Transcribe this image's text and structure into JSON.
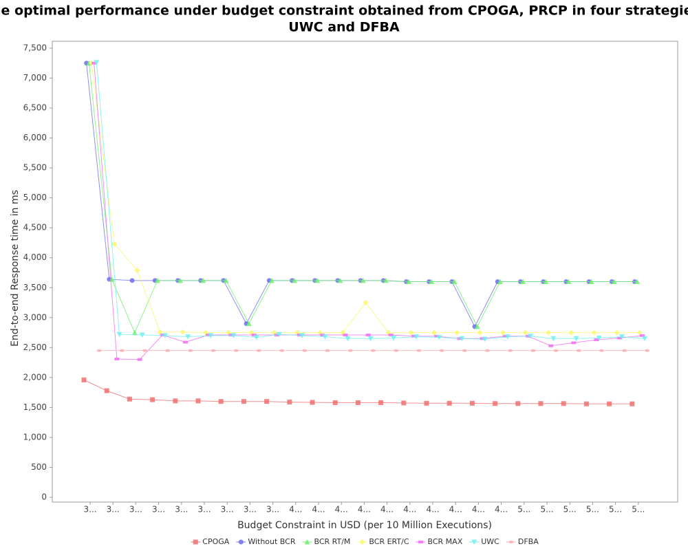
{
  "chart_data": {
    "type": "line",
    "title": [
      "The optimal performance under budget constraint obtained from CPOGA, PRCP in four strategies,",
      "UWC and DFBA"
    ],
    "x_label": "Budget Constraint in USD (per 10 Million Executions)",
    "y_label": "End-to-end Response time in ms",
    "categories": [
      "3...",
      "3...",
      "3...",
      "3...",
      "3...",
      "3...",
      "3...",
      "3...",
      "3...",
      "4...",
      "4...",
      "4...",
      "4...",
      "4...",
      "4...",
      "4...",
      "4...",
      "4...",
      "4...",
      "5...",
      "5...",
      "5...",
      "5...",
      "5...",
      "5..."
    ],
    "ylim": [
      0,
      7500
    ],
    "yticks": [
      0,
      500,
      {
        "value": 1000,
        "label": "1,000"
      },
      {
        "value": 1500,
        "label": "1,500"
      },
      {
        "value": 2000,
        "label": "2,000"
      },
      {
        "value": 2500,
        "label": "2,500"
      },
      {
        "value": 3000,
        "label": "3,000"
      },
      {
        "value": 3500,
        "label": "3,500"
      },
      {
        "value": 4000,
        "label": "4,000"
      },
      {
        "value": 4500,
        "label": "4,500"
      },
      {
        "value": 5000,
        "label": "5,000"
      },
      {
        "value": 5500,
        "label": "5,500"
      },
      {
        "value": 6000,
        "label": "6,000"
      },
      {
        "value": 6500,
        "label": "6,500"
      },
      {
        "value": 7000,
        "label": "7,000"
      },
      {
        "value": 7500,
        "label": "7,500"
      }
    ],
    "grid": false,
    "legend": "bottom",
    "series": [
      {
        "name": "CPOGA",
        "color": "#f07070",
        "marker": "square",
        "values": [
          1960,
          1780,
          1640,
          1630,
          1610,
          1610,
          1600,
          1600,
          1600,
          1590,
          1585,
          1580,
          1580,
          1580,
          1575,
          1570,
          1570,
          1570,
          1565,
          1565,
          1565,
          1565,
          1560,
          1560,
          1560
        ]
      },
      {
        "name": "Without BCR",
        "color": "#7070f0",
        "marker": "circle",
        "values": [
          7250,
          3640,
          3620,
          3620,
          3620,
          3620,
          3620,
          2900,
          3620,
          3620,
          3620,
          3620,
          3620,
          3620,
          3600,
          3600,
          3600,
          2850,
          3600,
          3600,
          3600,
          3600,
          3600,
          3600,
          3600
        ]
      },
      {
        "name": "BCR RT/M",
        "color": "#70f070",
        "marker": "triangle",
        "values": [
          7250,
          3640,
          2750,
          3620,
          3620,
          3620,
          3620,
          2900,
          3620,
          3620,
          3620,
          3620,
          3620,
          3620,
          3600,
          3600,
          3600,
          2850,
          3600,
          3600,
          3600,
          3600,
          3600,
          3600,
          3600
        ]
      },
      {
        "name": "BCR ERT/C",
        "color": "#f8f870",
        "marker": "diamond",
        "values": [
          7250,
          4230,
          3790,
          2760,
          2760,
          2750,
          2750,
          2750,
          2750,
          2750,
          2750,
          2750,
          3250,
          2750,
          2750,
          2750,
          2750,
          2750,
          2750,
          2750,
          2750,
          2750,
          2750,
          2750,
          2750
        ]
      },
      {
        "name": "BCR MAX",
        "color": "#f070f0",
        "marker": "rect",
        "values": [
          7250,
          2310,
          2300,
          2710,
          2590,
          2710,
          2710,
          2710,
          2710,
          2710,
          2710,
          2710,
          2710,
          2710,
          2690,
          2690,
          2650,
          2650,
          2690,
          2690,
          2530,
          2580,
          2630,
          2660,
          2700
        ]
      },
      {
        "name": "UWC",
        "color": "#70f0f0",
        "marker": "triangle-down",
        "values": [
          7260,
          2720,
          2710,
          2700,
          2680,
          2700,
          2700,
          2670,
          2720,
          2700,
          2680,
          2650,
          2650,
          2660,
          2680,
          2670,
          2650,
          2640,
          2680,
          2690,
          2650,
          2650,
          2660,
          2680,
          2650
        ]
      },
      {
        "name": "DFBA",
        "color": "#f8b0b0",
        "marker": "ellipse",
        "values": [
          2450,
          2450,
          2450,
          2450,
          2450,
          2450,
          2450,
          2450,
          2450,
          2450,
          2450,
          2450,
          2450,
          2450,
          2450,
          2450,
          2450,
          2450,
          2450,
          2450,
          2450,
          2450,
          2450,
          2450,
          2450
        ]
      }
    ]
  }
}
